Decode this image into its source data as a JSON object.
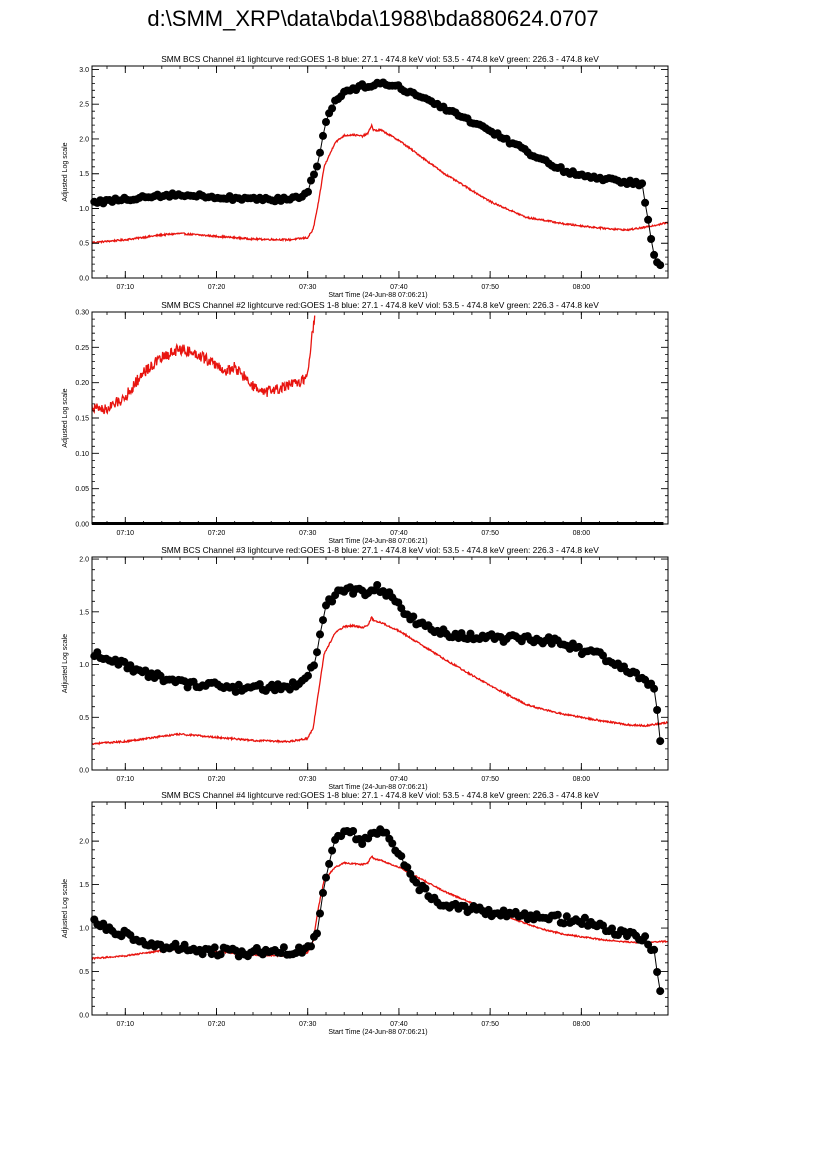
{
  "page_title": "d:\\SMM_XRP\\data\\bda\\1988\\bda880624.0707",
  "colors": {
    "goes": "#e8140f",
    "bcs": "#000000",
    "axis": "#000000"
  },
  "chart_data": [
    {
      "type": "line",
      "title": "SMM BCS Channel #1 lightcurve  red:GOES 1-8  blue: 27.1 - 474.8 keV  viol: 53.5 - 474.8 keV  green: 226.3 - 474.8 keV",
      "xlabel": "Start Time (24-Jun-88 07:06:21)",
      "ylabel": "Adjusted Log scale",
      "xlim_minutes": [
        6.35,
        69.5
      ],
      "ylim": [
        0,
        3.05
      ],
      "xticks": [
        "07:10",
        "07:20",
        "07:30",
        "07:40",
        "07:50",
        "08:00"
      ],
      "yticks": [
        "0.0",
        "0.5",
        "1.0",
        "1.5",
        "2.0",
        "2.5",
        "3.0"
      ],
      "grid": false,
      "series": [
        {
          "color": "red",
          "style": "line",
          "noise": 0.012,
          "x": [
            6.35,
            10,
            14,
            16,
            20,
            24,
            28,
            30,
            30.6,
            31.2,
            31.8,
            33,
            34,
            35,
            36,
            36.6,
            37,
            37.2,
            37.6,
            38,
            40,
            45,
            50,
            54,
            56,
            58,
            62,
            65,
            67,
            69.5
          ],
          "y": [
            0.51,
            0.55,
            0.62,
            0.64,
            0.6,
            0.56,
            0.55,
            0.58,
            0.7,
            1.1,
            1.6,
            1.95,
            2.05,
            2.06,
            2.04,
            2.08,
            2.2,
            2.13,
            2.12,
            2.13,
            1.98,
            1.5,
            1.1,
            0.87,
            0.83,
            0.78,
            0.72,
            0.69,
            0.73,
            0.8
          ]
        },
        {
          "color": "black",
          "style": "points",
          "noise": 0.03,
          "x": [
            6.6,
            9,
            12,
            15,
            18,
            22,
            26,
            29,
            30,
            31,
            32,
            33,
            34,
            35,
            36,
            37,
            38,
            40,
            45,
            50,
            55,
            58,
            62,
            64,
            66.2,
            66.7,
            67.2,
            67.6,
            68.1,
            68.6,
            68.9
          ],
          "y": [
            1.08,
            1.12,
            1.17,
            1.2,
            1.18,
            1.15,
            1.12,
            1.16,
            1.25,
            1.6,
            2.25,
            2.55,
            2.68,
            2.72,
            2.76,
            2.78,
            2.8,
            2.75,
            2.45,
            2.12,
            1.75,
            1.55,
            1.42,
            1.4,
            1.36,
            1.35,
            0.9,
            0.6,
            0.25,
            0.2,
            0.0
          ]
        }
      ]
    },
    {
      "type": "line",
      "title": "SMM BCS Channel #2 lightcurve  red:GOES 1-8  blue: 27.1 - 474.8 keV  viol: 53.5 - 474.8 keV  green: 226.3 - 474.8 keV",
      "xlabel": "Start Time (24-Jun-88 07:06:21)",
      "ylabel": "Adjusted Log scale",
      "xlim_minutes": [
        6.35,
        69.5
      ],
      "ylim": [
        0,
        0.3
      ],
      "xticks": [
        "07:10",
        "07:20",
        "07:30",
        "07:40",
        "07:50",
        "08:00"
      ],
      "yticks": [
        "0.00",
        "0.05",
        "0.10",
        "0.15",
        "0.20",
        "0.25",
        "0.30"
      ],
      "grid": false,
      "series": [
        {
          "color": "red",
          "style": "line",
          "noise": 0.008,
          "x": [
            6.35,
            8,
            10,
            12,
            14,
            16,
            18,
            20,
            21,
            22,
            24,
            25,
            27,
            29,
            30,
            30.4,
            30.8
          ],
          "y": [
            0.165,
            0.162,
            0.18,
            0.215,
            0.235,
            0.248,
            0.24,
            0.225,
            0.215,
            0.222,
            0.195,
            0.185,
            0.192,
            0.2,
            0.21,
            0.26,
            0.3
          ]
        },
        {
          "color": "black",
          "style": "baseline",
          "x": [
            6.35,
            69.0
          ],
          "y": [
            0.0,
            0.0
          ]
        }
      ]
    },
    {
      "type": "line",
      "title": "SMM BCS Channel #3 lightcurve  red:GOES 1-8  blue: 27.1 - 474.8 keV  viol: 53.5 - 474.8 keV  green: 226.3 - 474.8 keV",
      "xlabel": "Start Time (24-Jun-88 07:06:21)",
      "ylabel": "Adjusted Log scale",
      "xlim_minutes": [
        6.35,
        69.5
      ],
      "ylim": [
        0,
        2.02
      ],
      "xticks": [
        "07:10",
        "07:20",
        "07:30",
        "07:40",
        "07:50",
        "08:00"
      ],
      "yticks": [
        "0.0",
        "0.5",
        "1.0",
        "1.5",
        "2.0"
      ],
      "grid": false,
      "series": [
        {
          "color": "red",
          "style": "line",
          "noise": 0.008,
          "x": [
            6.35,
            10,
            14,
            16,
            20,
            24,
            28,
            30,
            30.6,
            31.2,
            31.8,
            33,
            34,
            35,
            36,
            36.6,
            37,
            37.2,
            37.6,
            38,
            40,
            45,
            50,
            54,
            56,
            58,
            62,
            65,
            67,
            69.5
          ],
          "y": [
            0.25,
            0.27,
            0.32,
            0.34,
            0.31,
            0.28,
            0.27,
            0.3,
            0.4,
            0.75,
            1.1,
            1.3,
            1.36,
            1.37,
            1.35,
            1.37,
            1.45,
            1.42,
            1.41,
            1.4,
            1.32,
            1.05,
            0.8,
            0.62,
            0.57,
            0.53,
            0.47,
            0.43,
            0.42,
            0.45
          ]
        },
        {
          "color": "black",
          "style": "points",
          "noise": 0.04,
          "x": [
            6.6,
            9,
            12,
            15,
            18,
            22,
            26,
            29,
            30,
            31,
            32,
            33,
            34,
            35,
            36,
            37,
            38,
            39,
            40,
            42,
            45,
            50,
            55,
            58,
            62,
            64,
            66.2,
            66.7,
            67.2,
            67.6,
            68.1,
            68.6,
            68.9
          ],
          "y": [
            1.1,
            1.02,
            0.92,
            0.85,
            0.8,
            0.78,
            0.78,
            0.8,
            0.85,
            1.1,
            1.55,
            1.65,
            1.7,
            1.7,
            1.68,
            1.72,
            1.72,
            1.65,
            1.55,
            1.4,
            1.3,
            1.26,
            1.24,
            1.2,
            1.08,
            1.0,
            0.9,
            0.88,
            0.85,
            0.8,
            0.72,
            0.3,
            0.0
          ]
        }
      ]
    },
    {
      "type": "line",
      "title": "SMM BCS Channel #4 lightcurve  red:GOES 1-8  blue: 27.1 - 474.8 keV  viol: 53.5 - 474.8 keV  green: 226.3 - 474.8 keV",
      "xlabel": "Start Time (24-Jun-88 07:06:21)",
      "ylabel": "Adjusted Log scale",
      "xlim_minutes": [
        6.35,
        69.5
      ],
      "ylim": [
        0,
        2.45
      ],
      "xticks": [
        "07:10",
        "07:20",
        "07:30",
        "07:40",
        "07:50",
        "08:00"
      ],
      "yticks": [
        "0.0",
        "0.5",
        "1.0",
        "1.5",
        "2.0"
      ],
      "grid": false,
      "series": [
        {
          "color": "red",
          "style": "line",
          "noise": 0.008,
          "x": [
            6.35,
            10,
            14,
            16,
            20,
            24,
            28,
            30,
            30.6,
            31.2,
            31.8,
            33,
            34,
            35,
            36,
            36.6,
            37,
            37.2,
            37.6,
            38,
            40,
            45,
            50,
            54,
            56,
            58,
            62,
            65,
            67,
            69.5
          ],
          "y": [
            0.65,
            0.68,
            0.74,
            0.76,
            0.73,
            0.69,
            0.68,
            0.72,
            0.85,
            1.25,
            1.55,
            1.7,
            1.75,
            1.74,
            1.73,
            1.75,
            1.83,
            1.8,
            1.79,
            1.78,
            1.7,
            1.42,
            1.2,
            1.05,
            0.98,
            0.93,
            0.87,
            0.84,
            0.83,
            0.85
          ]
        },
        {
          "color": "black",
          "style": "points",
          "noise": 0.05,
          "x": [
            6.6,
            9,
            12,
            15,
            18,
            22,
            26,
            29,
            30,
            31,
            32,
            33,
            34,
            35,
            36,
            37,
            38,
            39,
            40,
            42,
            45,
            50,
            55,
            58,
            62,
            64,
            66.2,
            66.7,
            67.2,
            67.6,
            68.1,
            68.6,
            68.9
          ],
          "y": [
            1.05,
            0.95,
            0.85,
            0.78,
            0.75,
            0.72,
            0.73,
            0.74,
            0.75,
            0.9,
            1.6,
            2.0,
            2.08,
            2.08,
            2.0,
            2.1,
            2.15,
            2.05,
            1.85,
            1.5,
            1.25,
            1.18,
            1.14,
            1.1,
            1.05,
            0.95,
            0.9,
            0.88,
            0.85,
            0.8,
            0.72,
            0.3,
            0.0
          ]
        }
      ]
    }
  ]
}
